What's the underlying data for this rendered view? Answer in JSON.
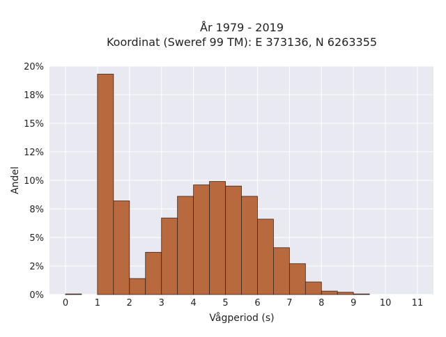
{
  "chart_data": {
    "type": "bar",
    "title_line1": "År 1979 - 2019",
    "title_line2": "Koordinat (Sweref 99 TM): E 373136, N 6263355",
    "xlabel": "Vågperiod (s)",
    "ylabel": "Andel",
    "xlim": [
      -0.5,
      11.5
    ],
    "ylim": [
      0,
      20
    ],
    "x_ticks": [
      0,
      1,
      2,
      3,
      4,
      5,
      6,
      7,
      8,
      9,
      10,
      11
    ],
    "y_ticks": [
      0,
      2.5,
      5,
      7.5,
      10,
      12.5,
      15,
      17.5,
      20
    ],
    "y_tick_labels": [
      "0%",
      "2%",
      "5%",
      "8%",
      "10%",
      "12%",
      "15%",
      "18%",
      "20%"
    ],
    "bin_width": 0.5,
    "bins": [
      {
        "start": 0.0,
        "value": 0.05
      },
      {
        "start": 0.5,
        "value": 0.0
      },
      {
        "start": 1.0,
        "value": 19.3
      },
      {
        "start": 1.5,
        "value": 8.2
      },
      {
        "start": 2.0,
        "value": 1.4
      },
      {
        "start": 2.5,
        "value": 3.7
      },
      {
        "start": 3.0,
        "value": 6.7
      },
      {
        "start": 3.5,
        "value": 8.6
      },
      {
        "start": 4.0,
        "value": 9.6
      },
      {
        "start": 4.5,
        "value": 9.9
      },
      {
        "start": 5.0,
        "value": 9.5
      },
      {
        "start": 5.5,
        "value": 8.6
      },
      {
        "start": 6.0,
        "value": 6.6
      },
      {
        "start": 6.5,
        "value": 4.1
      },
      {
        "start": 7.0,
        "value": 2.7
      },
      {
        "start": 7.5,
        "value": 1.1
      },
      {
        "start": 8.0,
        "value": 0.3
      },
      {
        "start": 8.5,
        "value": 0.2
      },
      {
        "start": 9.0,
        "value": 0.05
      }
    ],
    "grid": true,
    "colors": {
      "background": "#e9e9f1",
      "bar_fill": "#b8693d",
      "bar_edge": "#3a2418",
      "grid": "#ffffff"
    }
  }
}
